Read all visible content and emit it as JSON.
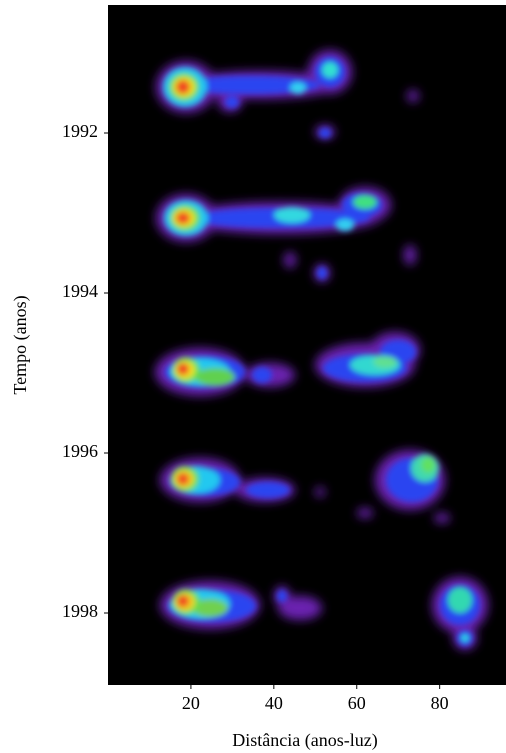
{
  "chart_data": {
    "type": "image",
    "x_label": "Distância (anos-luz)",
    "y_label": "Tempo (anos)",
    "xlim": [
      0,
      96
    ],
    "xticks": [
      20,
      40,
      60,
      80
    ],
    "ylim": [
      1990.4,
      1998.9
    ],
    "yticks": [
      1992,
      1994,
      1996,
      1998
    ]
  }
}
